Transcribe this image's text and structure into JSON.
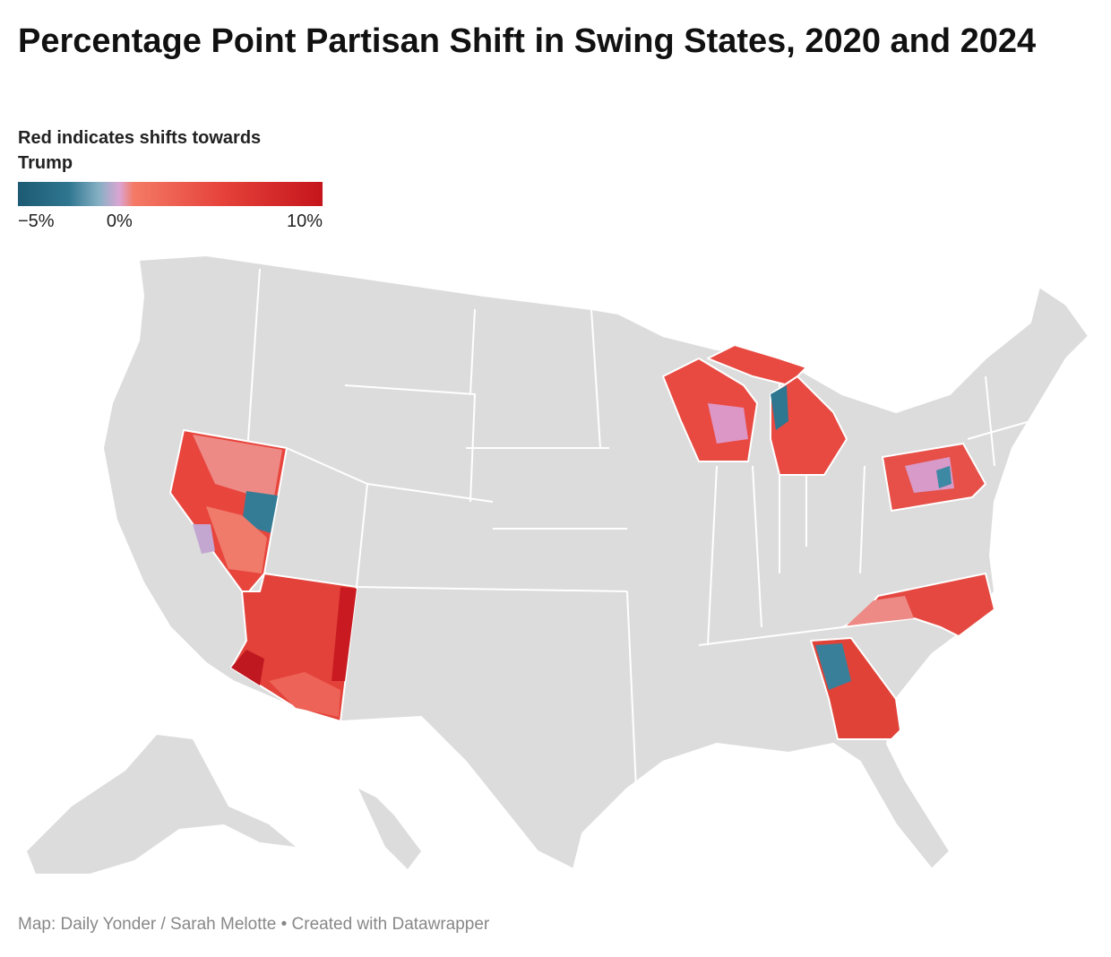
{
  "title": "Percentage Point Partisan Shift in Swing States, 2020 and 2024",
  "legend": {
    "title": "Red indicates shifts towards Trump",
    "range": [
      -5,
      10
    ],
    "stops": [
      {
        "value": -5,
        "color": "#1d5a73"
      },
      {
        "value": -2.5,
        "color": "#2f7690"
      },
      {
        "value": -1,
        "color": "#86b0c4"
      },
      {
        "value": 0,
        "color": "#dba5d3"
      },
      {
        "value": 0.7,
        "color": "#f47a66"
      },
      {
        "value": 5,
        "color": "#e6433b"
      },
      {
        "value": 10,
        "color": "#c5151c"
      }
    ],
    "ticks": [
      {
        "value": -5,
        "label": "−5%"
      },
      {
        "value": 0,
        "label": "0%"
      },
      {
        "value": 10,
        "label": "10%"
      }
    ]
  },
  "footer": "Map: Daily Yonder / Sarah Melotte • Created with Datawrapper"
}
